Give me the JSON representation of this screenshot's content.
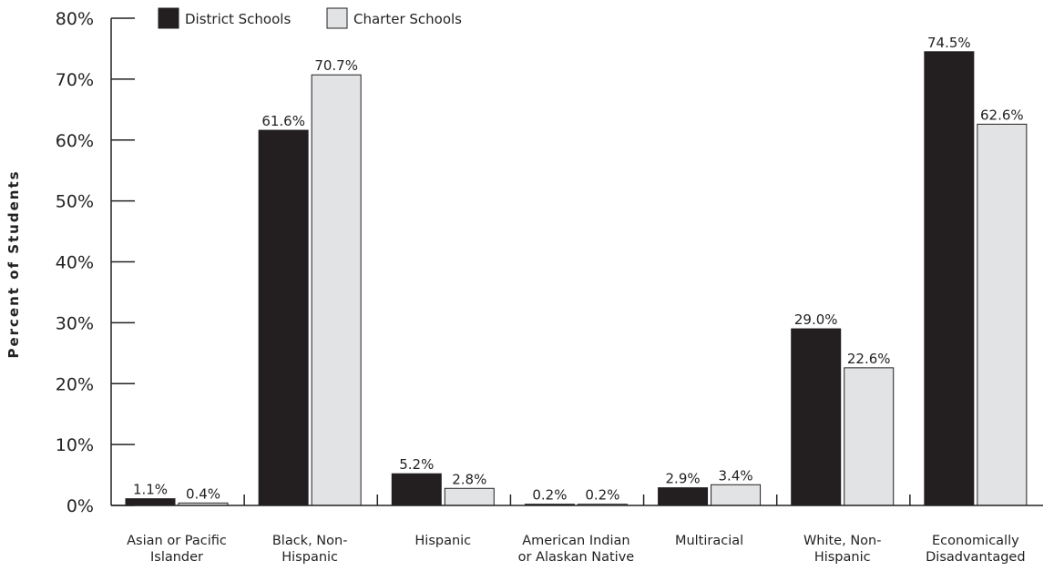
{
  "chart_data": {
    "type": "bar",
    "title": "",
    "xlabel": "",
    "ylabel": "Percent of Students",
    "ylim": [
      0,
      80
    ],
    "yticks": [
      0,
      10,
      20,
      30,
      40,
      50,
      60,
      70,
      80
    ],
    "ytick_labels": [
      "0%",
      "10%",
      "20%",
      "30%",
      "40%",
      "50%",
      "60%",
      "70%",
      "80%"
    ],
    "grid": false,
    "legend_position": "top-left",
    "categories": [
      [
        "Asian or Pacific",
        "Islander"
      ],
      [
        "Black, Non-",
        "Hispanic"
      ],
      [
        "Hispanic"
      ],
      [
        "American Indian",
        "or Alaskan Native"
      ],
      [
        "Multiracial"
      ],
      [
        "White, Non-",
        "Hispanic"
      ],
      [
        "Economically",
        "Disadvantaged"
      ]
    ],
    "series": [
      {
        "name": "District Schools",
        "color": "#231f20",
        "values": [
          1.1,
          61.6,
          5.2,
          0.2,
          2.9,
          29.0,
          74.5
        ],
        "labels": [
          "1.1%",
          "61.6%",
          "5.2%",
          "0.2%",
          "2.9%",
          "29.0%",
          "74.5%"
        ]
      },
      {
        "name": "Charter Schools",
        "color": "#e2e3e4",
        "values": [
          0.4,
          70.7,
          2.8,
          0.2,
          3.4,
          22.6,
          62.6
        ],
        "labels": [
          "0.4%",
          "70.7%",
          "2.8%",
          "0.2%",
          "3.4%",
          "22.6%",
          "62.6%"
        ]
      }
    ]
  }
}
